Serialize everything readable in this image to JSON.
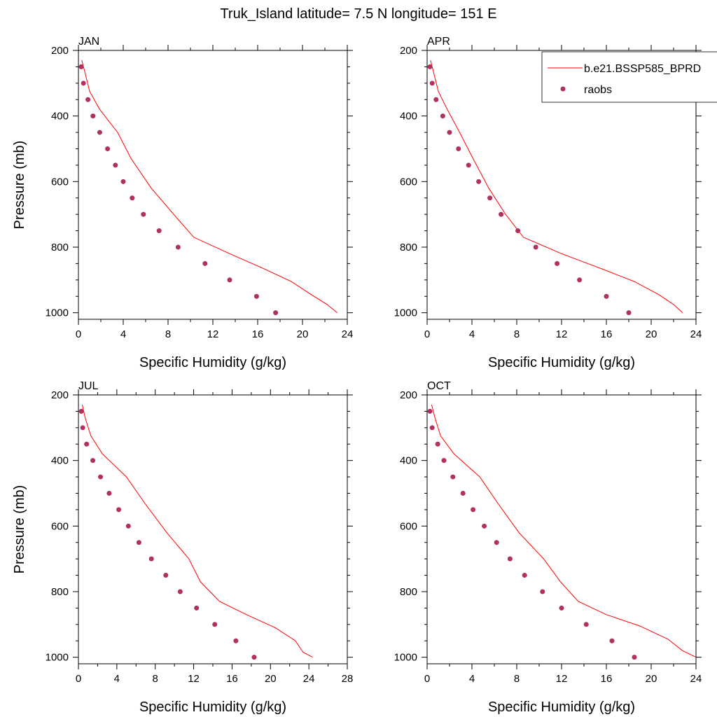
{
  "figure": {
    "title": "Truk_Island  latitude= 7.5 N longitude= 151 E"
  },
  "legend": {
    "model_label": "b.e21.BSSP585_BPRD",
    "obs_label": "raobs",
    "placement": "top-right of APR panel"
  },
  "colors": {
    "model_line": "#ff0000",
    "obs_marker": "#b03060",
    "axes": "#000000"
  },
  "chart_data": [
    {
      "type": "scatter",
      "panel": "JAN",
      "xlabel": "Specific Humidity (g/kg)",
      "ylabel": "Pressure (mb)",
      "xlim": [
        0,
        24
      ],
      "ylim": [
        1000,
        200
      ],
      "y_inverted": true,
      "xticks": [
        0,
        4,
        8,
        12,
        16,
        20,
        24
      ],
      "yticks": [
        200,
        400,
        600,
        800,
        1000
      ],
      "series": [
        {
          "name": "b.e21.BSSP585_BPRD",
          "style": "line",
          "x": [
            0.3,
            0.6,
            1.0,
            1.9,
            3.5,
            4.7,
            6.5,
            8.5,
            10.3,
            13.5,
            16.5,
            19.0,
            20.8,
            22.2,
            23.1
          ],
          "y": [
            230,
            270,
            325,
            380,
            450,
            530,
            620,
            700,
            770,
            820,
            865,
            905,
            945,
            975,
            1000
          ]
        },
        {
          "name": "raobs",
          "style": "markers",
          "x": [
            0.25,
            0.45,
            0.85,
            1.3,
            1.9,
            2.6,
            3.3,
            4.0,
            4.8,
            5.8,
            7.2,
            8.9,
            11.3,
            13.5,
            15.9,
            17.6
          ],
          "y": [
            250,
            300,
            350,
            400,
            450,
            500,
            550,
            600,
            650,
            700,
            750,
            800,
            850,
            900,
            950,
            1000
          ]
        }
      ]
    },
    {
      "type": "scatter",
      "panel": "APR",
      "xlabel": "Specific Humidity (g/kg)",
      "ylabel": "",
      "xlim": [
        0,
        24
      ],
      "ylim": [
        1000,
        200
      ],
      "y_inverted": true,
      "xticks": [
        0,
        4,
        8,
        12,
        16,
        20,
        24
      ],
      "yticks": [
        200,
        400,
        600,
        800,
        1000
      ],
      "series": [
        {
          "name": "b.e21.BSSP585_BPRD",
          "style": "line",
          "x": [
            0.3,
            0.6,
            1.0,
            1.8,
            2.9,
            4.1,
            5.5,
            7.0,
            8.6,
            12.0,
            15.5,
            18.5,
            20.7,
            22.0,
            22.8
          ],
          "y": [
            230,
            270,
            325,
            380,
            450,
            530,
            620,
            700,
            770,
            820,
            865,
            905,
            945,
            975,
            1000
          ]
        },
        {
          "name": "raobs",
          "style": "markers",
          "x": [
            0.25,
            0.45,
            0.8,
            1.4,
            2.0,
            2.8,
            3.7,
            4.6,
            5.6,
            6.6,
            8.1,
            9.7,
            11.6,
            13.6,
            16.0,
            18.0
          ],
          "y": [
            250,
            300,
            350,
            400,
            450,
            500,
            550,
            600,
            650,
            700,
            750,
            800,
            850,
            900,
            950,
            1000
          ]
        }
      ]
    },
    {
      "type": "scatter",
      "panel": "JUL",
      "xlabel": "Specific Humidity (g/kg)",
      "ylabel": "Pressure (mb)",
      "xlim": [
        0,
        28
      ],
      "ylim": [
        1000,
        200
      ],
      "y_inverted": true,
      "xticks": [
        0,
        4,
        8,
        12,
        16,
        20,
        24,
        28
      ],
      "yticks": [
        200,
        400,
        600,
        800,
        1000
      ],
      "series": [
        {
          "name": "b.e21.BSSP585_BPRD",
          "style": "line",
          "x": [
            0.4,
            0.7,
            1.3,
            2.5,
            5.0,
            6.9,
            9.2,
            11.5,
            12.7,
            14.7,
            17.5,
            20.5,
            22.6,
            23.4,
            24.4
          ],
          "y": [
            230,
            270,
            325,
            380,
            450,
            530,
            620,
            700,
            770,
            830,
            870,
            910,
            950,
            985,
            1000
          ]
        },
        {
          "name": "raobs",
          "style": "markers",
          "x": [
            0.3,
            0.45,
            0.85,
            1.5,
            2.3,
            3.2,
            4.2,
            5.2,
            6.3,
            7.6,
            9.1,
            10.6,
            12.3,
            14.2,
            16.4,
            18.3
          ],
          "y": [
            250,
            300,
            350,
            400,
            450,
            500,
            550,
            600,
            650,
            700,
            750,
            800,
            850,
            900,
            950,
            1000
          ]
        }
      ]
    },
    {
      "type": "scatter",
      "panel": "OCT",
      "xlabel": "Specific Humidity (g/kg)",
      "ylabel": "",
      "xlim": [
        0,
        24
      ],
      "ylim": [
        1000,
        200
      ],
      "y_inverted": true,
      "xticks": [
        0,
        4,
        8,
        12,
        16,
        20,
        24
      ],
      "yticks": [
        200,
        400,
        600,
        800,
        1000
      ],
      "series": [
        {
          "name": "b.e21.BSSP585_BPRD",
          "style": "line",
          "x": [
            0.4,
            0.7,
            1.2,
            2.4,
            4.7,
            6.3,
            8.2,
            10.4,
            11.9,
            13.5,
            16.0,
            19.0,
            21.5,
            22.8,
            24.0
          ],
          "y": [
            230,
            270,
            325,
            380,
            450,
            530,
            620,
            700,
            770,
            830,
            870,
            905,
            945,
            980,
            1000
          ]
        },
        {
          "name": "raobs",
          "style": "markers",
          "x": [
            0.25,
            0.45,
            0.95,
            1.5,
            2.3,
            3.2,
            4.1,
            5.1,
            6.2,
            7.4,
            8.7,
            10.3,
            12.0,
            14.2,
            16.5,
            18.5
          ],
          "y": [
            250,
            300,
            350,
            400,
            450,
            500,
            550,
            600,
            650,
            700,
            750,
            800,
            850,
            900,
            950,
            1000
          ]
        }
      ]
    }
  ]
}
